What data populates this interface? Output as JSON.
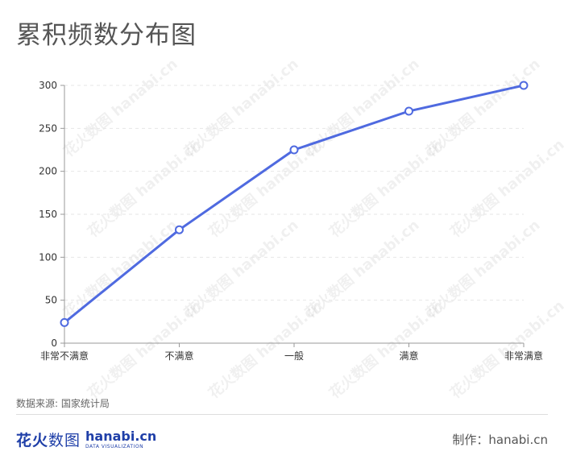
{
  "header": {
    "title": "累积频数分布图"
  },
  "chart_data": {
    "type": "line",
    "title": "累积频数分布图",
    "categories": [
      "非常不满意",
      "不满意",
      "一般",
      "满意",
      "非常满意"
    ],
    "series": [
      {
        "values": [
          24,
          132,
          225,
          270,
          300
        ]
      }
    ],
    "ylim": [
      0,
      300
    ],
    "yticks": [
      0,
      50,
      100,
      150,
      200,
      250,
      300
    ],
    "grid": true,
    "color": "#4f6ae0"
  },
  "footer": {
    "source": "数据来源: 国家统计局",
    "logo_cn_bold": "花火",
    "logo_cn_light": "数图",
    "logo_en": "hanabi.cn",
    "logo_en_sub": "DATA VISUALIZATION",
    "credit": "制作：hanabi.cn"
  },
  "watermark": {
    "text": "花火数图 hanabi.cn"
  }
}
